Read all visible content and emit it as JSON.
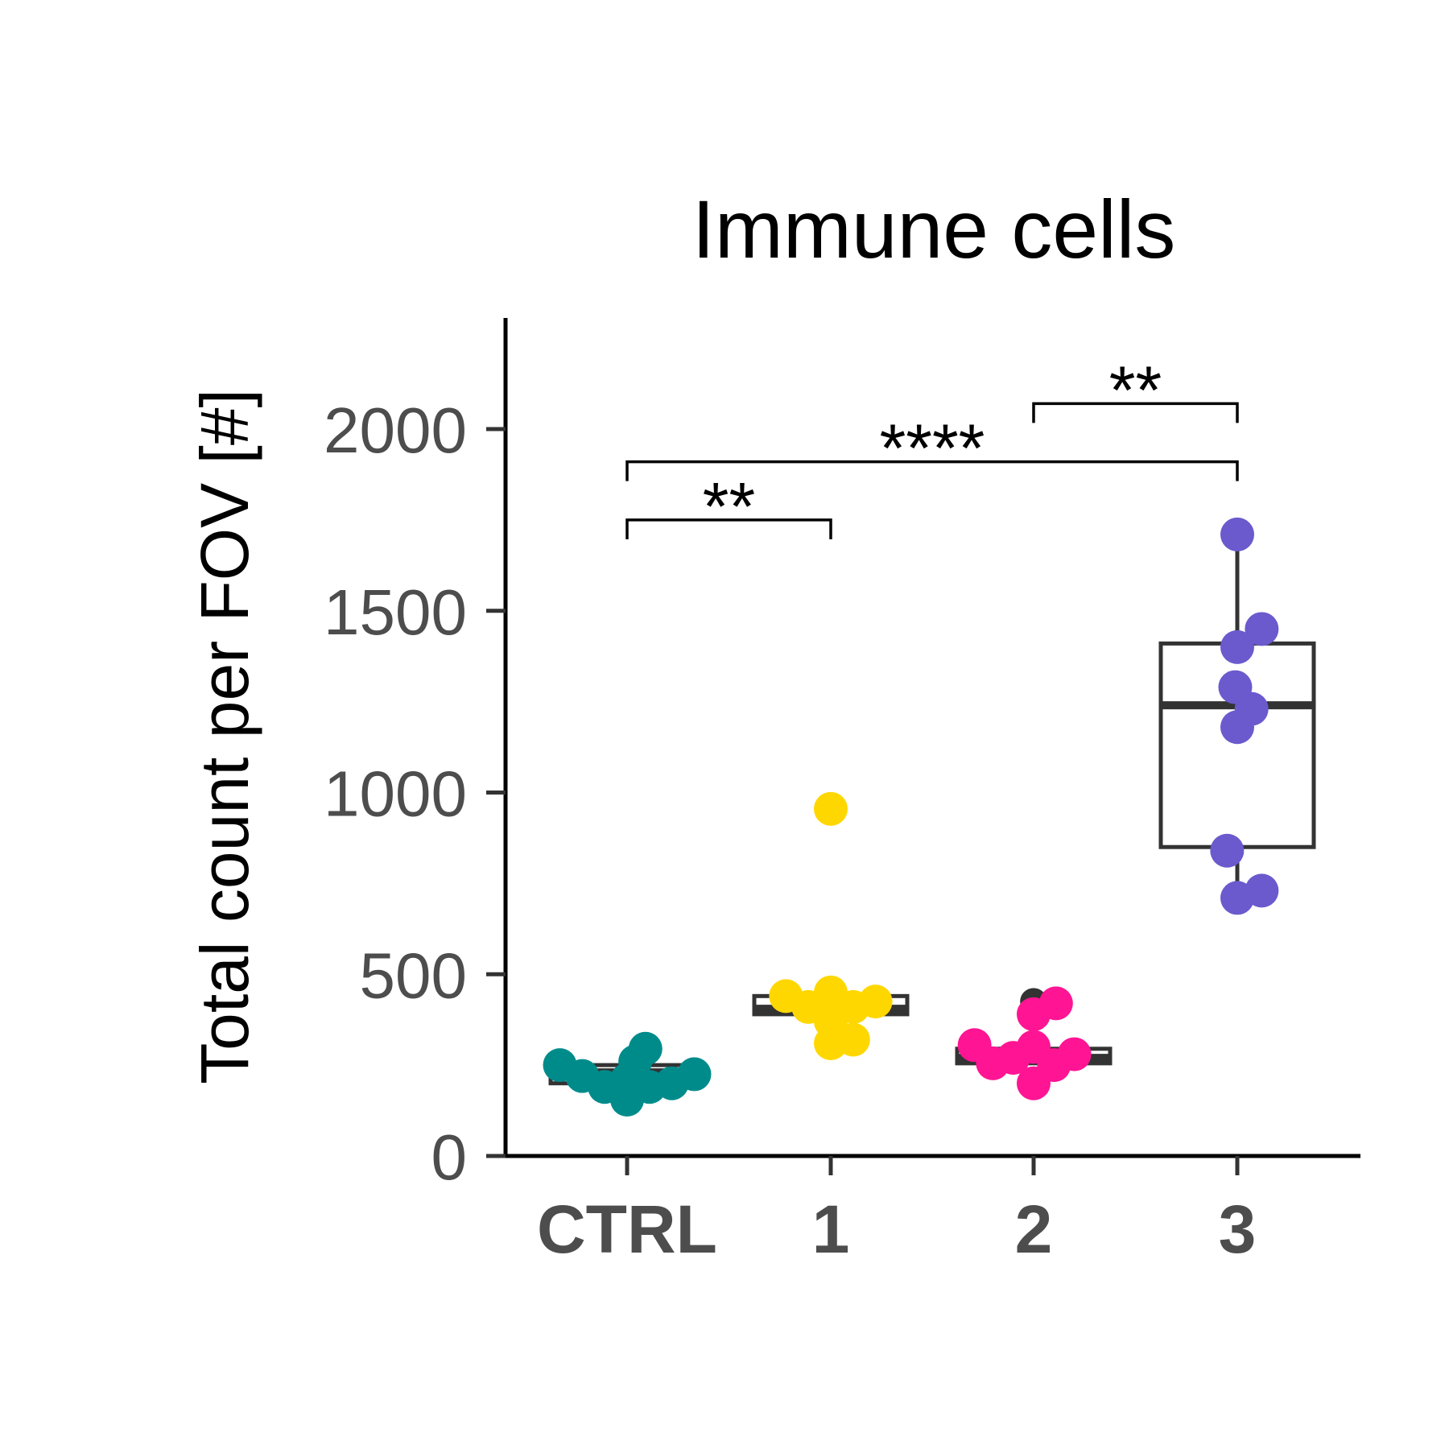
{
  "chart_data": {
    "type": "box-dot",
    "title": "Immune cells",
    "ylabel": "Total count per FOV [#]",
    "xlabel": "",
    "ylim": [
      0,
      2300
    ],
    "yticks": [
      0,
      500,
      1000,
      1500,
      2000
    ],
    "categories": [
      "CTRL",
      "1",
      "2",
      "3"
    ],
    "colors": {
      "CTRL": "#008b8b",
      "1": "#ffd700",
      "2": "#ff1493",
      "3": "#6a5acd",
      "box": "#333333",
      "axis": "#000000"
    },
    "boxes": [
      {
        "category": "CTRL",
        "q1": 200,
        "median": 230,
        "q3": 250,
        "whisker_low": 200,
        "whisker_high": 250
      },
      {
        "category": "1",
        "q1": 390,
        "median": 405,
        "q3": 440,
        "whisker_low": 390,
        "whisker_high": 440
      },
      {
        "category": "2",
        "q1": 255,
        "median": 270,
        "q3": 295,
        "whisker_low": 255,
        "whisker_high": 295
      },
      {
        "category": "3",
        "q1": 850,
        "median": 1240,
        "q3": 1410,
        "whisker_low": 730,
        "whisker_high": 1710
      }
    ],
    "points": [
      {
        "category": "CTRL",
        "y": 250,
        "dx": -0.33
      },
      {
        "category": "CTRL",
        "y": 220,
        "dx": -0.22
      },
      {
        "category": "CTRL",
        "y": 190,
        "dx": -0.11
      },
      {
        "category": "CTRL",
        "y": 155,
        "dx": 0.0
      },
      {
        "category": "CTRL",
        "y": 210,
        "dx": 0.0
      },
      {
        "category": "CTRL",
        "y": 260,
        "dx": 0.04
      },
      {
        "category": "CTRL",
        "y": 295,
        "dx": 0.09
      },
      {
        "category": "CTRL",
        "y": 190,
        "dx": 0.11
      },
      {
        "category": "CTRL",
        "y": 200,
        "dx": 0.22
      },
      {
        "category": "CTRL",
        "y": 225,
        "dx": 0.33
      },
      {
        "category": "1",
        "y": 955,
        "dx": 0.0
      },
      {
        "category": "1",
        "y": 440,
        "dx": -0.22
      },
      {
        "category": "1",
        "y": 410,
        "dx": -0.11
      },
      {
        "category": "1",
        "y": 450,
        "dx": 0.0
      },
      {
        "category": "1",
        "y": 370,
        "dx": 0.0
      },
      {
        "category": "1",
        "y": 310,
        "dx": 0.0
      },
      {
        "category": "1",
        "y": 410,
        "dx": 0.11
      },
      {
        "category": "1",
        "y": 320,
        "dx": 0.11
      },
      {
        "category": "1",
        "y": 425,
        "dx": 0.22
      },
      {
        "category": "2",
        "y": 420,
        "dx": 0.11
      },
      {
        "category": "2",
        "y": 390,
        "dx": 0.0
      },
      {
        "category": "2",
        "y": 305,
        "dx": -0.29
      },
      {
        "category": "2",
        "y": 255,
        "dx": -0.2
      },
      {
        "category": "2",
        "y": 270,
        "dx": -0.1
      },
      {
        "category": "2",
        "y": 300,
        "dx": 0.0
      },
      {
        "category": "2",
        "y": 200,
        "dx": 0.0
      },
      {
        "category": "2",
        "y": 250,
        "dx": 0.1
      },
      {
        "category": "2",
        "y": 280,
        "dx": 0.2
      },
      {
        "category": "3",
        "y": 1710,
        "dx": 0.0
      },
      {
        "category": "3",
        "y": 1450,
        "dx": 0.12
      },
      {
        "category": "3",
        "y": 1400,
        "dx": 0.0
      },
      {
        "category": "3",
        "y": 1290,
        "dx": -0.01
      },
      {
        "category": "3",
        "y": 1230,
        "dx": 0.07
      },
      {
        "category": "3",
        "y": 1180,
        "dx": 0.0
      },
      {
        "category": "3",
        "y": 840,
        "dx": -0.05
      },
      {
        "category": "3",
        "y": 730,
        "dx": 0.12
      },
      {
        "category": "3",
        "y": 710,
        "dx": 0.0
      }
    ],
    "outlier_points": [
      {
        "category": "2",
        "y": 425,
        "dx": 0.0
      }
    ],
    "significance": [
      {
        "from": "CTRL",
        "to": "1",
        "y": 1750,
        "label": "**"
      },
      {
        "from": "CTRL",
        "to": "3",
        "y": 1910,
        "label": "****"
      },
      {
        "from": "2",
        "to": "3",
        "y": 2070,
        "label": "**"
      }
    ]
  }
}
